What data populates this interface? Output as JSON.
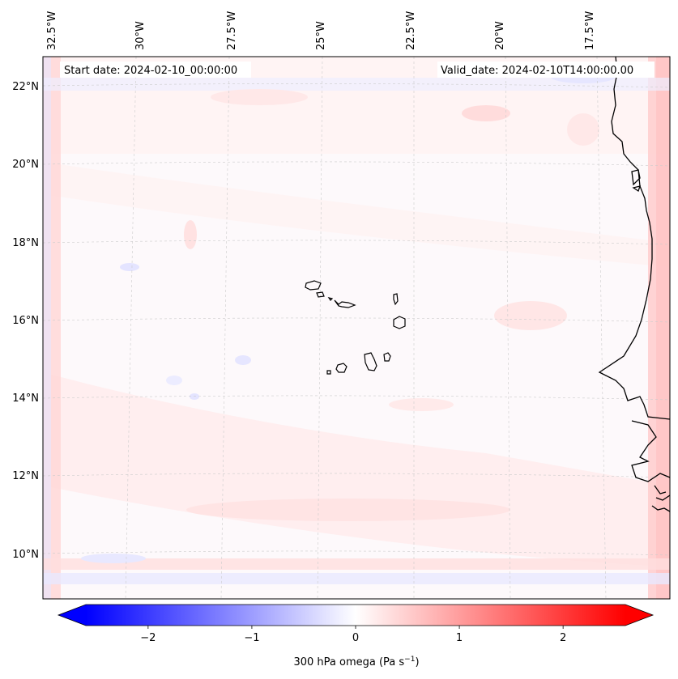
{
  "map": {
    "start_label": "Start date: 2024-02-10_00:00:00",
    "valid_label": "Valid_date: 2024-02-10T14:00:00.00",
    "lon_ticks": [
      "32.5°W",
      "30°W",
      "27.5°W",
      "25°W",
      "22.5°W",
      "20°W",
      "17.5°W"
    ],
    "lat_ticks": [
      "22°N",
      "20°N",
      "18°N",
      "16°N",
      "14°N",
      "12°N",
      "10°N"
    ],
    "islands": [
      "Santo Antão",
      "São Vicente",
      "Santa Luzia",
      "São Nicolau",
      "Sal",
      "Boa Vista",
      "Maio",
      "Santiago",
      "Fogo",
      "Brava"
    ],
    "colors": {
      "neg": "#0000ff",
      "zero": "#ffffff",
      "pos": "#ff0000",
      "coast": "#000000"
    }
  },
  "colorbar": {
    "label_main": "300 hPa omega (Pa s",
    "label_exp": "−1",
    "label_close": ")",
    "ticks": [
      {
        "value": -2,
        "label": "−2"
      },
      {
        "value": -1,
        "label": "−1"
      },
      {
        "value": 0,
        "label": "0"
      },
      {
        "value": 1,
        "label": "1"
      },
      {
        "value": 2,
        "label": "2"
      }
    ],
    "range": [
      -2.6,
      2.6
    ]
  }
}
